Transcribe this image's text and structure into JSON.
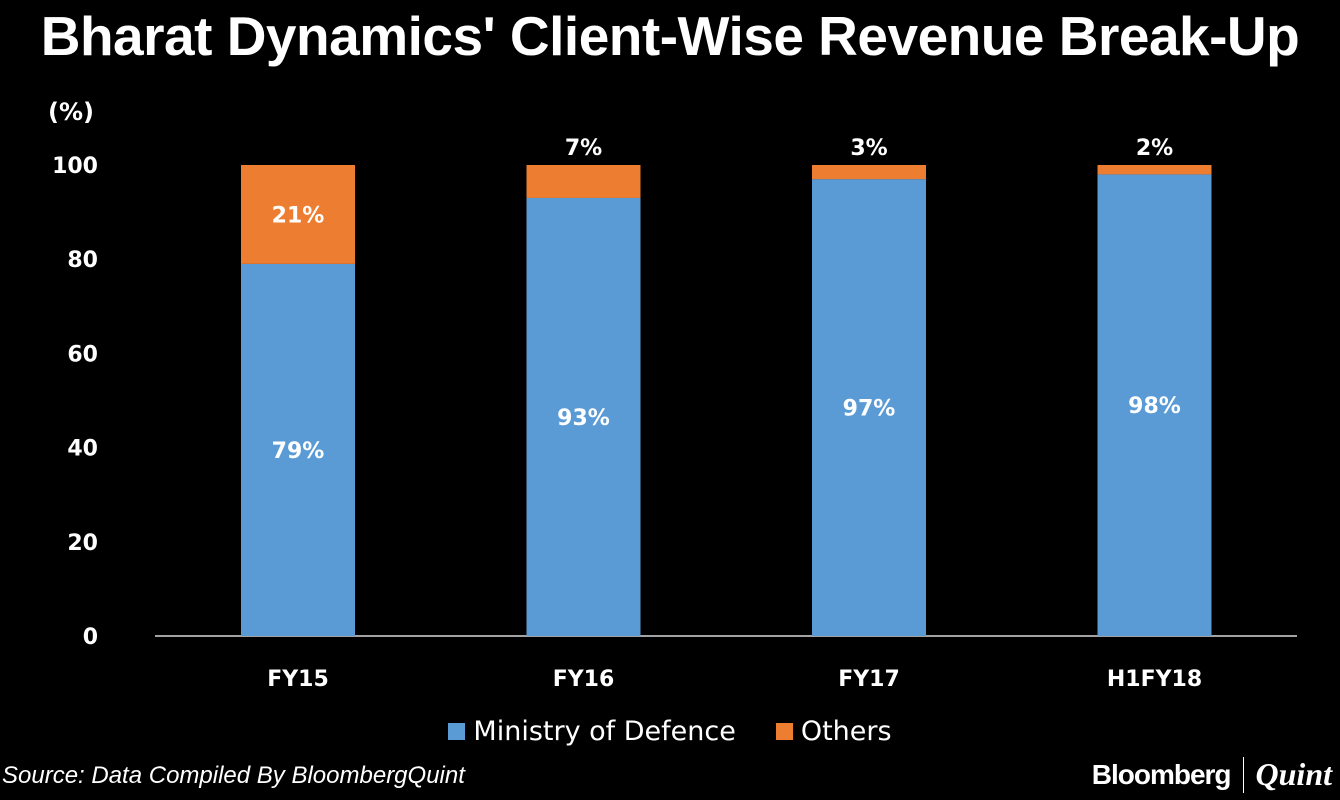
{
  "chart_data": {
    "type": "bar",
    "stacked": true,
    "title": "Bharat Dynamics' Client-Wise Revenue Break-Up",
    "ylabel": "(%)",
    "xlabel": "",
    "ylim": [
      0,
      100
    ],
    "yticks": [
      0,
      20,
      40,
      60,
      80,
      100
    ],
    "categories": [
      "FY15",
      "FY16",
      "FY17",
      "H1FY18"
    ],
    "series": [
      {
        "name": "Ministry of Defence",
        "color": "#5b9bd5",
        "values": [
          79,
          93,
          97,
          98
        ],
        "labels": [
          "79%",
          "93%",
          "97%",
          "98%"
        ]
      },
      {
        "name": "Others",
        "color": "#ed7d31",
        "values": [
          21,
          7,
          3,
          2
        ],
        "labels": [
          "21%",
          "7%",
          "3%",
          "2%"
        ]
      }
    ],
    "legend": "bottom-center",
    "grid": false
  },
  "source": "Source: Data Compiled By BloombergQuint",
  "logo": {
    "left": "Bloomberg",
    "right": "Quint"
  }
}
